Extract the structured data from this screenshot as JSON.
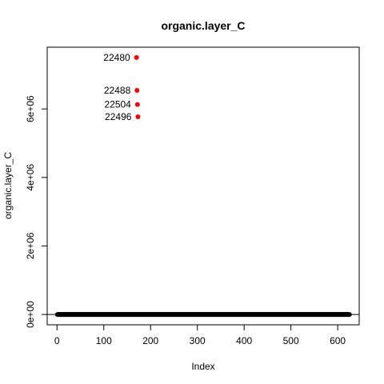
{
  "chart_data": {
    "type": "scatter",
    "title": "organic.layer_C",
    "xlabel": "Index",
    "ylabel": "organic.layer_C",
    "xlim": [
      -21,
      646
    ],
    "ylim": [
      -302000,
      7802000
    ],
    "xticks": [
      0,
      100,
      200,
      300,
      400,
      500,
      600
    ],
    "yticks": [
      0,
      2000000,
      4000000,
      6000000
    ],
    "ytick_labels": [
      "0e+00",
      "2e+06",
      "4e+06",
      "6e+06"
    ],
    "baseline": 0,
    "grid": false,
    "legend": "none",
    "n_points": 625,
    "point_color": "#000000",
    "background_value": 0,
    "outliers": [
      {
        "x": 170,
        "y": 7500000,
        "label": "22480"
      },
      {
        "x": 171,
        "y": 6540000,
        "label": "22488"
      },
      {
        "x": 172,
        "y": 6130000,
        "label": "22504"
      },
      {
        "x": 173,
        "y": 5770000,
        "label": "22496"
      }
    ],
    "outlier_color": "#ff0000"
  }
}
